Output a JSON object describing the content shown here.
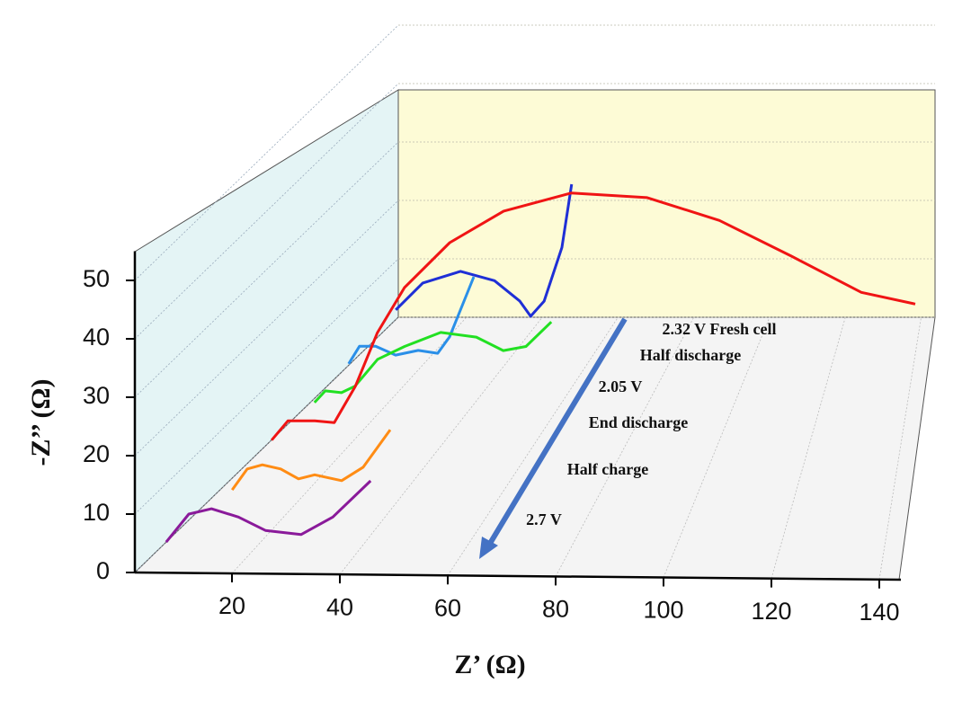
{
  "chart_data": {
    "type": "waterfall-line",
    "x_label": "Z’ (Ω)",
    "y_label": "-Z’’ (Ω)",
    "xlim": [
      2,
      144
    ],
    "xticks": [
      20,
      40,
      60,
      80,
      100,
      120,
      140
    ],
    "ylim": [
      0,
      55
    ],
    "yticks": [
      0,
      10,
      20,
      30,
      40,
      50
    ],
    "grid": true,
    "series": [
      {
        "name": "2.32 V Fresh cell",
        "color": "#1f2fd6",
        "x": [
          8.7,
          13.7,
          20.7,
          27,
          31.7,
          33.7,
          36.2,
          39.5,
          41.3
        ],
        "values": [
          8.8,
          13.4,
          15.4,
          13.8,
          10.3,
          7.7,
          10.3,
          19.5,
          30.3
        ]
      },
      {
        "name": "Half discharge",
        "color": "#2a8fe8",
        "x": [
          8.3,
          10.3,
          13.3,
          17,
          21.2,
          24.8,
          27,
          31.5
        ],
        "values": [
          6.8,
          9.8,
          9.8,
          8.3,
          9.1,
          8.6,
          11.4,
          21.7
        ]
      },
      {
        "name": "2.05 V",
        "color": "#22e022",
        "x": [
          10.3,
          12.3,
          15.3,
          17.8,
          22,
          27,
          33.7,
          40.3,
          45.3,
          49.5,
          54.2
        ],
        "values": [
          7.4,
          9.4,
          9.1,
          10.2,
          14.8,
          17,
          19.4,
          18.6,
          16.3,
          17,
          21.2
        ]
      },
      {
        "name": "End discharge",
        "color": "#f01414",
        "x": [
          10.7,
          13.7,
          18.7,
          22.3,
          26.2,
          30.3,
          35.3,
          43.7,
          53.7,
          66.2,
          80.3,
          93.7,
          107,
          120,
          130
        ],
        "values": [
          8.2,
          11.5,
          11.5,
          11.2,
          17.4,
          26.6,
          34.3,
          42,
          47.4,
          50.5,
          49.7,
          45.8,
          39.7,
          33.5,
          31.5
        ]
      },
      {
        "name": "Half charge",
        "color": "#ff8c14",
        "x": [
          11.7,
          14.5,
          17.3,
          20.7,
          24,
          27,
          32,
          36,
          41
        ],
        "values": [
          6.9,
          10.5,
          11.2,
          10.5,
          8.8,
          9.5,
          8.5,
          10.8,
          17.2
        ]
      },
      {
        "name": "2.7 V",
        "color": "#8a1a9a",
        "x": [
          7.8,
          12,
          16.2,
          21.2,
          26.2,
          32.8,
          38.7,
          45.7
        ],
        "values": [
          5.2,
          10,
          10.9,
          9.5,
          7.2,
          6.5,
          9.5,
          15.7
        ]
      }
    ]
  }
}
